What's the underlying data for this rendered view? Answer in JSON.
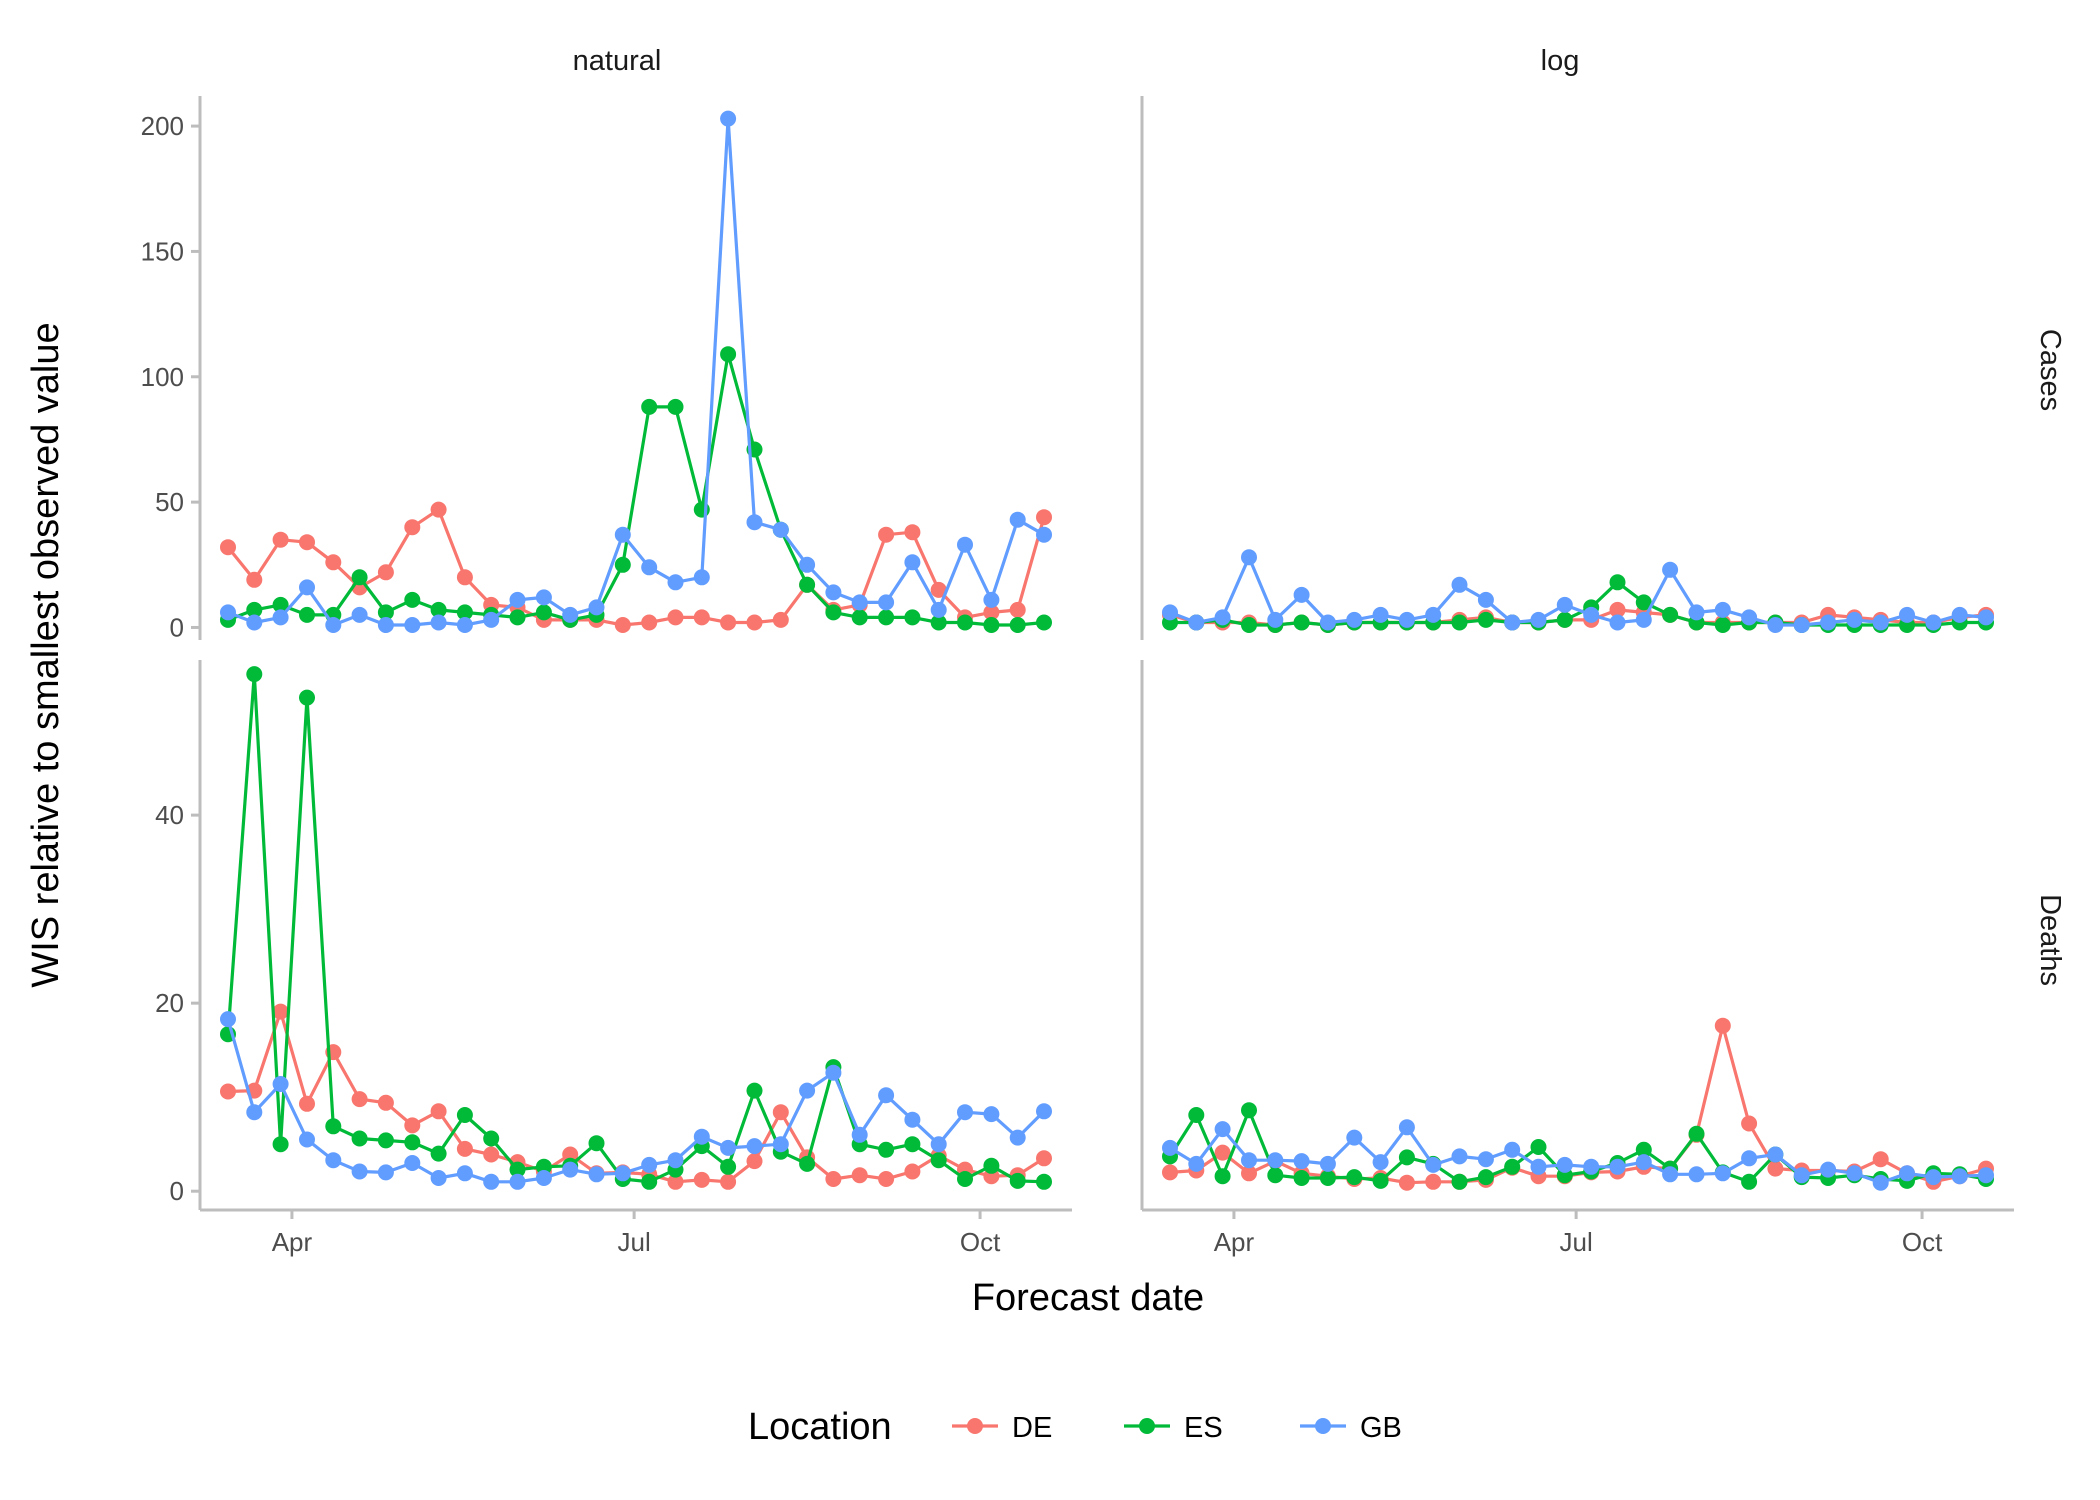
{
  "chart_data": {
    "type": "line",
    "xlabel": "Forecast date",
    "ylabel": "WIS relative to smallest observed value",
    "x": [
      "2021-03-15",
      "2021-03-22",
      "2021-03-29",
      "2021-04-05",
      "2021-04-12",
      "2021-04-19",
      "2021-04-26",
      "2021-05-03",
      "2021-05-10",
      "2021-05-17",
      "2021-05-24",
      "2021-05-31",
      "2021-06-07",
      "2021-06-14",
      "2021-06-21",
      "2021-06-28",
      "2021-07-05",
      "2021-07-12",
      "2021-07-19",
      "2021-07-26",
      "2021-08-02",
      "2021-08-09",
      "2021-08-16",
      "2021-08-23",
      "2021-08-30",
      "2021-09-06",
      "2021-09-13",
      "2021-09-20",
      "2021-09-27",
      "2021-10-04",
      "2021-10-11",
      "2021-10-18"
    ],
    "x_ticks": [
      {
        "date": "2021-04-01",
        "label": "Apr"
      },
      {
        "date": "2021-07-01",
        "label": "Jul"
      },
      {
        "date": "2021-10-01",
        "label": "Oct"
      }
    ],
    "columns": [
      "natural",
      "log"
    ],
    "rows": [
      "Cases",
      "Deaths"
    ],
    "legend": {
      "title": "Location",
      "position": "bottom"
    },
    "colors": {
      "DE": "#F8766D",
      "ES": "#00BA38",
      "GB": "#619CFF"
    },
    "panels": [
      {
        "row": "Cases",
        "column": "natural",
        "ylim": [
          -5,
          212
        ],
        "yticks": [
          0,
          50,
          100,
          150,
          200
        ],
        "series": [
          {
            "name": "DE",
            "values": [
              32,
              19,
              35,
              34,
              26,
              16,
              22,
              40,
              47,
              20,
              9,
              8,
              3,
              3,
              3,
              1,
              2,
              4,
              4,
              2,
              2,
              3,
              17,
              7,
              9,
              37,
              38,
              15,
              4,
              6,
              7,
              44
            ]
          },
          {
            "name": "ES",
            "values": [
              3,
              7,
              9,
              5,
              5,
              20,
              6,
              11,
              7,
              6,
              5,
              4,
              6,
              3,
              5,
              25,
              88,
              88,
              47,
              109,
              71,
              39,
              17,
              6,
              4,
              4,
              4,
              2,
              2,
              1,
              1,
              2
            ]
          },
          {
            "name": "GB",
            "values": [
              6,
              2,
              4,
              16,
              1,
              5,
              1,
              1,
              2,
              1,
              3,
              11,
              12,
              5,
              8,
              37,
              24,
              18,
              20,
              203,
              42,
              39,
              25,
              14,
              10,
              10,
              26,
              7,
              33,
              11,
              43,
              37
            ]
          }
        ]
      },
      {
        "row": "Cases",
        "column": "log",
        "ylim": [
          -5,
          212
        ],
        "yticks": [
          0,
          50,
          100,
          150,
          200
        ],
        "series": [
          {
            "name": "DE",
            "values": [
              5,
              2,
              2,
              2,
              1,
              2,
              1,
              2,
              2,
              2,
              2,
              3,
              4,
              2,
              2,
              3,
              3,
              7,
              6,
              5,
              2,
              2,
              2,
              2,
              2,
              5,
              4,
              3,
              2,
              2,
              4,
              5
            ]
          },
          {
            "name": "ES",
            "values": [
              2,
              2,
              3,
              1,
              1,
              2,
              1,
              2,
              2,
              2,
              2,
              2,
              3,
              2,
              2,
              3,
              8,
              18,
              10,
              5,
              2,
              1,
              2,
              2,
              1,
              1,
              1,
              1,
              1,
              1,
              2,
              2
            ]
          },
          {
            "name": "GB",
            "values": [
              6,
              2,
              4,
              28,
              3,
              13,
              2,
              3,
              5,
              3,
              5,
              17,
              11,
              2,
              3,
              9,
              5,
              2,
              3,
              23,
              6,
              7,
              4,
              1,
              1,
              2,
              3,
              2,
              5,
              2,
              5,
              4
            ]
          }
        ]
      },
      {
        "row": "Deaths",
        "column": "natural",
        "ylim": [
          -2,
          56.5
        ],
        "yticks": [
          0,
          20,
          40
        ],
        "series": [
          {
            "name": "DE",
            "values": [
              10.6,
              10.7,
              19.1,
              9.3,
              14.8,
              9.8,
              9.4,
              7.0,
              8.5,
              4.5,
              3.9,
              3.1,
              2.1,
              3.9,
              1.9,
              2.0,
              1.8,
              1.0,
              1.2,
              1.0,
              3.2,
              8.4,
              3.6,
              1.3,
              1.7,
              1.3,
              2.1,
              3.8,
              2.3,
              1.6,
              1.7,
              3.5
            ]
          },
          {
            "name": "ES",
            "values": [
              16.7,
              55.0,
              5.0,
              52.5,
              6.9,
              5.6,
              5.4,
              5.2,
              4.0,
              8.1,
              5.6,
              2.3,
              2.6,
              2.7,
              5.1,
              1.3,
              1.0,
              2.3,
              4.8,
              2.6,
              10.7,
              4.2,
              2.9,
              13.2,
              5.0,
              4.4,
              5.0,
              3.3,
              1.3,
              2.7,
              1.1,
              1.0
            ]
          },
          {
            "name": "GB",
            "values": [
              18.3,
              8.4,
              11.4,
              5.5,
              3.3,
              2.1,
              2.0,
              3.0,
              1.4,
              1.9,
              1.0,
              1.0,
              1.4,
              2.3,
              1.8,
              1.9,
              2.8,
              3.3,
              5.8,
              4.6,
              4.8,
              5.0,
              10.7,
              12.6,
              6.0,
              10.2,
              7.6,
              5.0,
              8.4,
              8.2,
              5.7,
              8.5
            ]
          }
        ]
      },
      {
        "row": "Deaths",
        "column": "log",
        "ylim": [
          -2,
          56.5
        ],
        "yticks": [
          0,
          20,
          40
        ],
        "series": [
          {
            "name": "DE",
            "values": [
              2.0,
              2.2,
              4.1,
              1.9,
              3.2,
              1.9,
              1.6,
              1.3,
              1.4,
              0.9,
              1.0,
              1.0,
              1.2,
              2.5,
              1.6,
              1.6,
              2.0,
              2.1,
              2.6,
              2.4,
              6.0,
              17.6,
              7.2,
              2.4,
              2.2,
              2.2,
              2.1,
              3.4,
              1.9,
              1.0,
              1.6,
              2.4
            ]
          },
          {
            "name": "ES",
            "values": [
              3.7,
              8.1,
              1.6,
              8.6,
              1.7,
              1.4,
              1.4,
              1.5,
              1.1,
              3.6,
              2.9,
              1.0,
              1.5,
              2.6,
              4.7,
              1.7,
              2.1,
              3.0,
              4.4,
              2.4,
              6.1,
              2.0,
              1.0,
              3.9,
              1.5,
              1.4,
              1.7,
              1.3,
              1.1,
              1.9,
              1.8,
              1.3
            ]
          },
          {
            "name": "GB",
            "values": [
              4.6,
              2.9,
              6.6,
              3.3,
              3.3,
              3.2,
              2.9,
              5.7,
              3.1,
              6.8,
              2.8,
              3.7,
              3.4,
              4.4,
              2.6,
              2.8,
              2.6,
              2.6,
              3.1,
              1.8,
              1.8,
              1.9,
              3.5,
              3.9,
              1.7,
              2.3,
              1.9,
              0.9,
              1.9,
              1.5,
              1.6,
              1.7
            ]
          }
        ]
      }
    ]
  }
}
